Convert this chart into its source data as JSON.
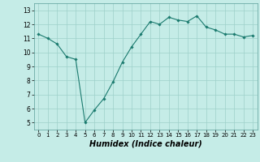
{
  "x": [
    0,
    1,
    2,
    3,
    4,
    5,
    6,
    7,
    8,
    9,
    10,
    11,
    12,
    13,
    14,
    15,
    16,
    17,
    18,
    19,
    20,
    21,
    22,
    23
  ],
  "y": [
    11.3,
    11.0,
    10.6,
    9.7,
    9.5,
    5.0,
    5.9,
    6.7,
    7.9,
    9.3,
    10.4,
    11.3,
    12.2,
    12.0,
    12.5,
    12.3,
    12.2,
    12.6,
    11.8,
    11.6,
    11.3,
    11.3,
    11.1,
    11.2
  ],
  "line_color": "#1a7a6e",
  "marker": "D",
  "marker_size": 1.8,
  "bg_color": "#c5ece7",
  "grid_color": "#9ed0ca",
  "xlabel": "Humidex (Indice chaleur)",
  "xlabel_fontsize": 7,
  "xlim": [
    -0.5,
    23.5
  ],
  "ylim": [
    4.5,
    13.5
  ],
  "yticks": [
    5,
    6,
    7,
    8,
    9,
    10,
    11,
    12,
    13
  ],
  "xticks": [
    0,
    1,
    2,
    3,
    4,
    5,
    6,
    7,
    8,
    9,
    10,
    11,
    12,
    13,
    14,
    15,
    16,
    17,
    18,
    19,
    20,
    21,
    22,
    23
  ],
  "tick_fontsize": 5,
  "ytick_fontsize": 5.5
}
